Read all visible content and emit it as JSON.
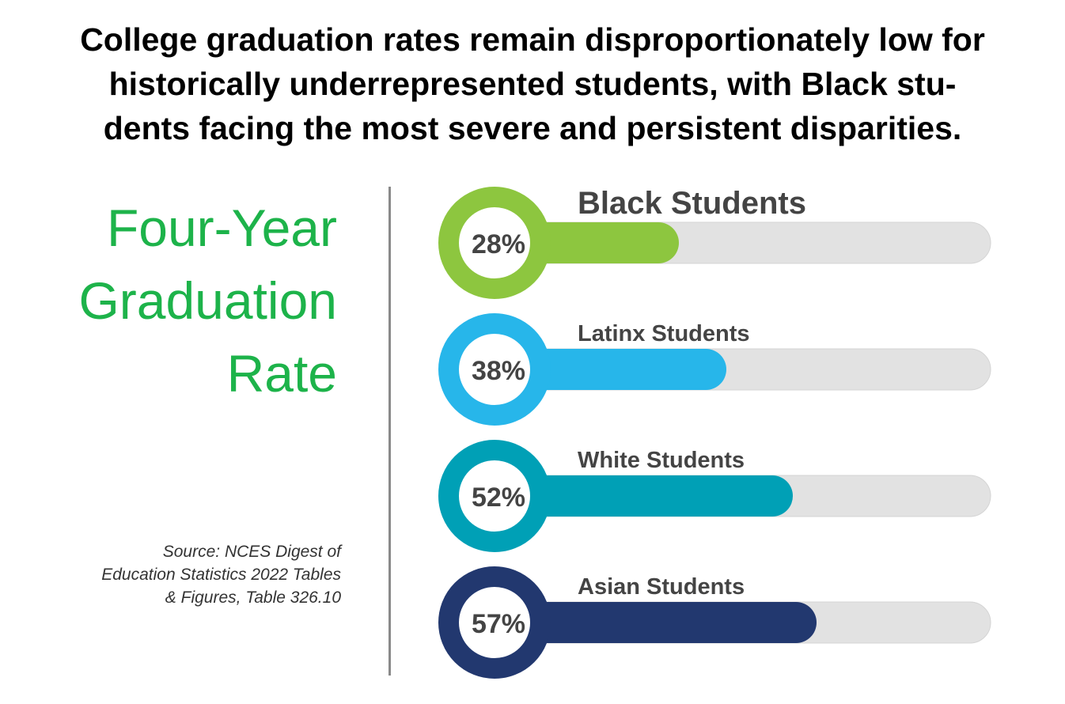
{
  "title_lines": [
    "College graduation rates remain disproportionately low for",
    "historically underrepresented students, with Black stu-",
    "dents facing the most severe and persistent disparities."
  ],
  "side_title_lines": [
    "Four-Year",
    "Graduation",
    "Rate"
  ],
  "source_lines": [
    "Source: NCES Digest of",
    "Education Statistics 2022 Tables",
    "& Figures, Table 326.10"
  ],
  "chart_data": {
    "type": "bar",
    "title": "Four-Year Graduation Rate",
    "categories": [
      "Black Students",
      "Latinx Students",
      "White Students",
      "Asian Students"
    ],
    "values": [
      28,
      38,
      52,
      57
    ],
    "labels": [
      "28%",
      "38%",
      "52%",
      "57%"
    ],
    "colors": [
      "#8dc63f",
      "#27b6ea",
      "#00a0b6",
      "#22386f"
    ],
    "track_color": "#e2e2e2",
    "ylim": [
      0,
      100
    ]
  }
}
